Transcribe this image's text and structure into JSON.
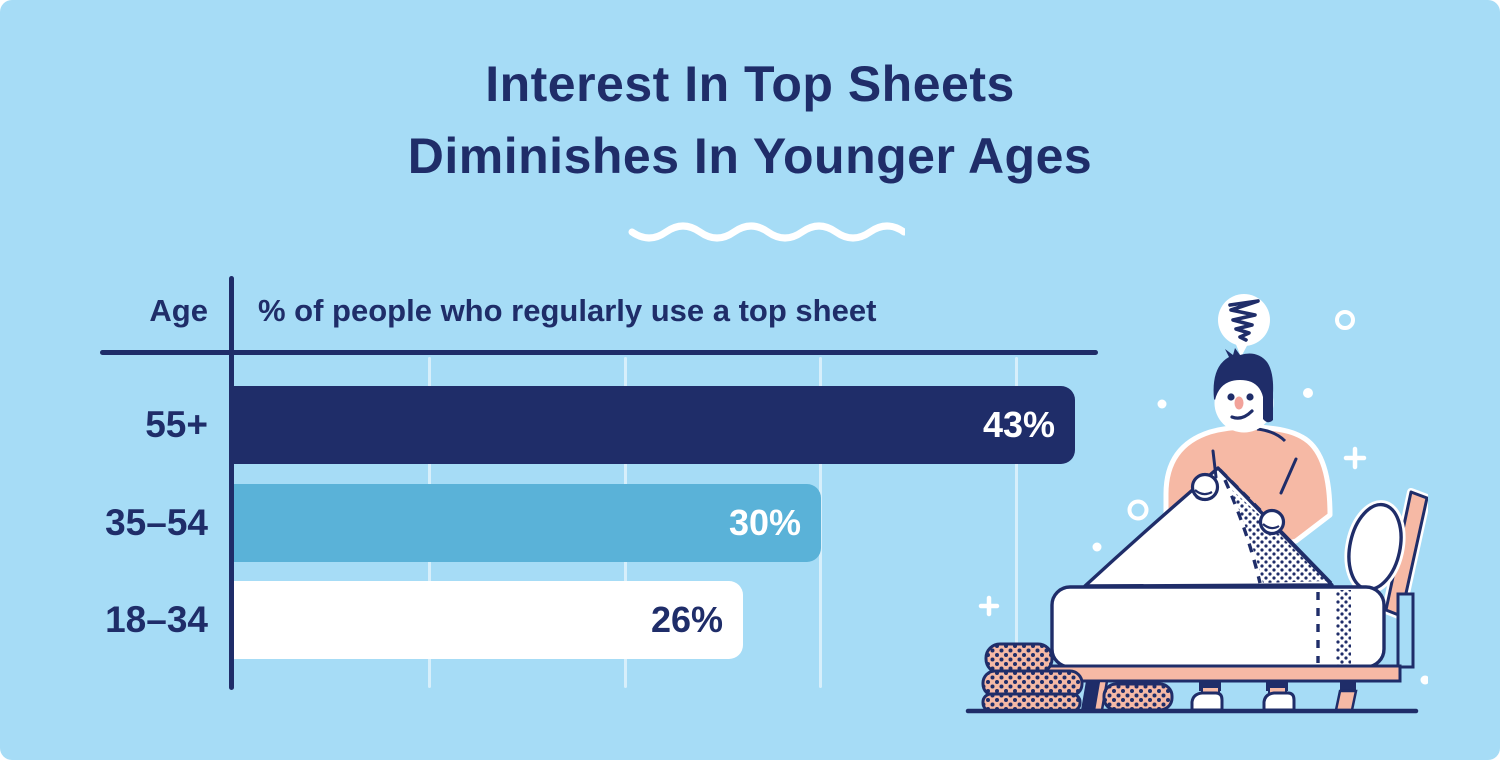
{
  "title": {
    "line1": "Interest In Top Sheets",
    "line2": "Diminishes In Younger Ages"
  },
  "table": {
    "age_header": "Age",
    "value_header": "% of people who regularly use a top sheet"
  },
  "chart_data": {
    "type": "bar",
    "orientation": "horizontal",
    "title": "Interest In Top Sheets Diminishes In Younger Ages",
    "ylabel": "Age",
    "xlabel": "% of people who regularly use a top sheet",
    "categories": [
      "55+",
      "35–54",
      "18–34"
    ],
    "values": [
      43,
      30,
      26
    ],
    "value_labels": [
      "43%",
      "30%",
      "26%"
    ],
    "bar_colors": [
      "#1f2d69",
      "#5ab2d8",
      "#ffffff"
    ],
    "value_label_colors": [
      "#ffffff",
      "#ffffff",
      "#1f2d69"
    ],
    "xlim": [
      0,
      50
    ],
    "gridlines_percent": [
      10,
      20,
      30,
      40
    ],
    "grid": "vertical light lines",
    "legend": false
  },
  "colors": {
    "background": "#a6dcf6",
    "navy": "#1f2d69",
    "sky_blue_bar": "#5ab2d8",
    "white": "#ffffff",
    "salmon": "#f6b9a5",
    "nose_salmon": "#f2a29a",
    "gridline": "rgba(255,255,255,0.55)"
  },
  "illustration": {
    "name": "man-pulling-top-sheet-on-bed",
    "mood": "frustrated",
    "elements": [
      "thought-bubble-scribble",
      "man",
      "top-sheet",
      "mattress",
      "bed-frame",
      "headboard-plank",
      "oval-pillow",
      "polka-dot-blanket-rolls",
      "sparkles",
      "ground-line"
    ]
  }
}
